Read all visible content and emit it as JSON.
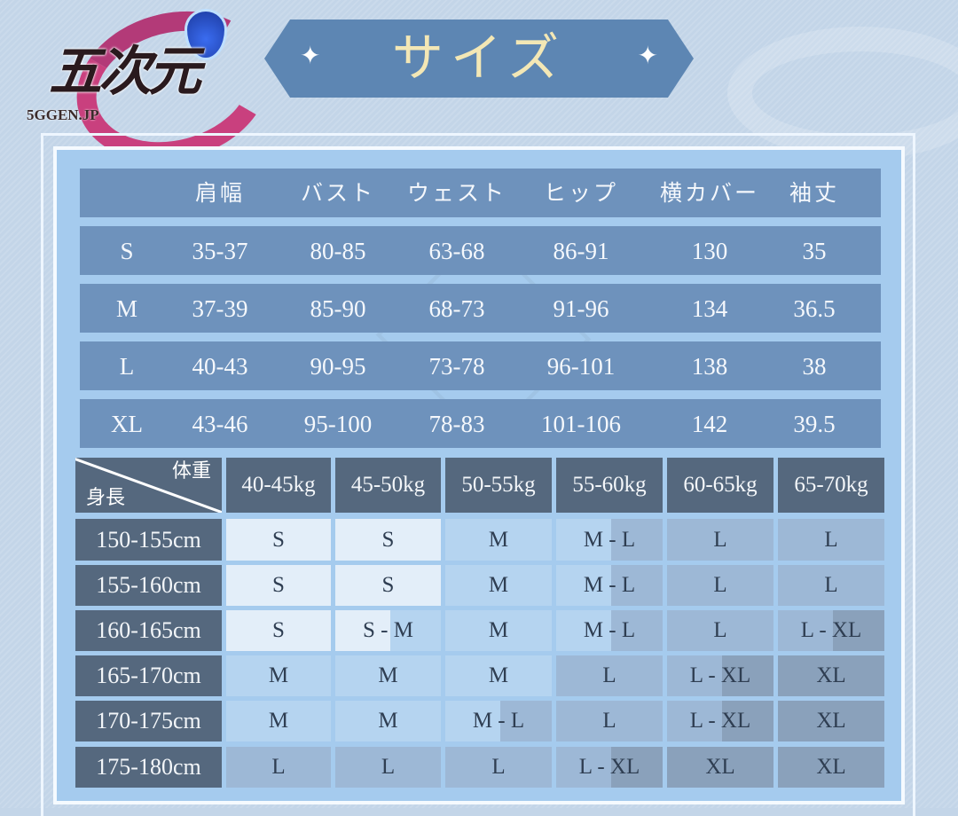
{
  "logo": {
    "text": "五次元",
    "url": "5GGEN.JP"
  },
  "title": "サイズ",
  "colors": {
    "S": "#e3eef9",
    "M": "#b5d4f0",
    "L": "#9db8d6",
    "XL": "#8aa1bb",
    "header": "#55687e",
    "measure_row": "#6e92bc"
  },
  "measurements": {
    "headers": [
      "",
      "肩幅",
      "バスト",
      "ウェスト",
      "ヒップ",
      "横カバー",
      "袖丈"
    ],
    "rows": [
      [
        "S",
        "35-37",
        "80-85",
        "63-68",
        "86-91",
        "130",
        "35"
      ],
      [
        "M",
        "37-39",
        "85-90",
        "68-73",
        "91-96",
        "134",
        "36.5"
      ],
      [
        "L",
        "40-43",
        "90-95",
        "73-78",
        "96-101",
        "138",
        "38"
      ],
      [
        "XL",
        "43-46",
        "95-100",
        "78-83",
        "101-106",
        "142",
        "39.5"
      ]
    ]
  },
  "fit": {
    "corner_top": "体重",
    "corner_bottom": "身長",
    "weights": [
      "40-45kg",
      "45-50kg",
      "50-55kg",
      "55-60kg",
      "60-65kg",
      "65-70kg"
    ],
    "rows": [
      {
        "height": "150-155cm",
        "sizes": [
          "S",
          "S",
          "M",
          "M - L",
          "L",
          "L"
        ]
      },
      {
        "height": "155-160cm",
        "sizes": [
          "S",
          "S",
          "M",
          "M - L",
          "L",
          "L"
        ]
      },
      {
        "height": "160-165cm",
        "sizes": [
          "S",
          "S - M",
          "M",
          "M - L",
          "L",
          "L - XL"
        ]
      },
      {
        "height": "165-170cm",
        "sizes": [
          "M",
          "M",
          "M",
          "L",
          "L - XL",
          "XL"
        ]
      },
      {
        "height": "170-175cm",
        "sizes": [
          "M",
          "M",
          "M - L",
          "L",
          "L - XL",
          "XL"
        ]
      },
      {
        "height": "175-180cm",
        "sizes": [
          "L",
          "L",
          "L",
          "L - XL",
          "XL",
          "XL"
        ]
      }
    ]
  }
}
